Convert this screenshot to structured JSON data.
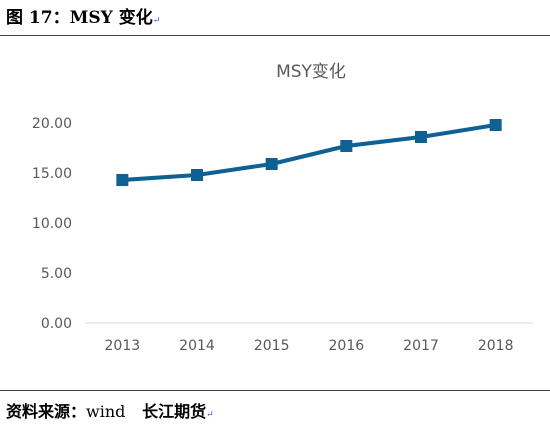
{
  "figure": {
    "title": "图 17：MSY 变化",
    "source_prefix": "资料来源：",
    "source_name": "wind",
    "source_org": "长江期货",
    "return_mark": "↵"
  },
  "chart_data": {
    "type": "line",
    "title": "MSY变化",
    "categories": [
      "2013",
      "2014",
      "2015",
      "2016",
      "2017",
      "2018"
    ],
    "series": [
      {
        "values": [
          14.3,
          14.8,
          15.9,
          17.7,
          18.6,
          19.8
        ],
        "color": "#0f6193"
      }
    ],
    "ylim": [
      0,
      20
    ],
    "yticks": [
      "0.00",
      "5.00",
      "10.00",
      "15.00",
      "20.00"
    ],
    "ytick_values": [
      0,
      5,
      10,
      15,
      20
    ],
    "grid": false,
    "axis_color": "#d9d9d9"
  }
}
